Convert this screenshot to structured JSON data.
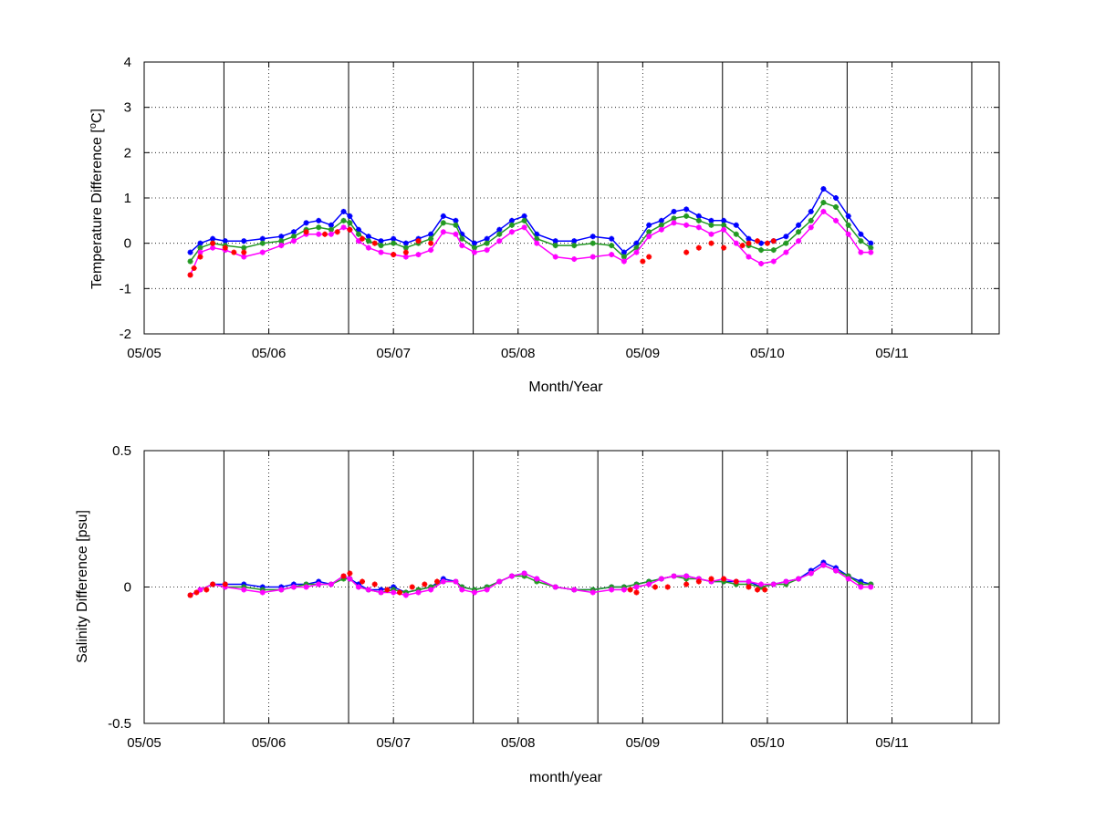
{
  "chart_data": [
    {
      "type": "line",
      "title": "",
      "xlabel": "Month/Year",
      "ylabel": "Temperature Difference [",
      "ylabel_sup": "o",
      "ylabel_tail": "C]",
      "xlim": [
        0,
        6.86
      ],
      "ylim": [
        -2,
        4
      ],
      "xticks": [
        0,
        1,
        2,
        3,
        4,
        5,
        6
      ],
      "xticklabels": [
        "05/05",
        "05/06",
        "05/07",
        "05/08",
        "05/09",
        "05/10",
        "05/11"
      ],
      "yticks": [
        -2,
        -1,
        0,
        1,
        2,
        3,
        4
      ],
      "yticklabels": [
        "-2",
        "-1",
        "0",
        "1",
        "2",
        "3",
        "4"
      ],
      "grid": true,
      "vertical_markers": [
        0.64,
        1.64,
        2.64,
        3.64,
        4.64,
        5.64,
        6.64
      ],
      "series": [
        {
          "color": "#0000ff",
          "marker": "asterisk",
          "x": [
            0.37,
            0.45,
            0.55,
            0.65,
            0.8,
            0.95,
            1.1,
            1.2,
            1.3,
            1.4,
            1.5,
            1.6,
            1.65,
            1.72,
            1.8,
            1.9,
            2.0,
            2.1,
            2.2,
            2.3,
            2.4,
            2.5,
            2.55,
            2.65,
            2.75,
            2.85,
            2.95,
            3.05,
            3.15,
            3.3,
            3.45,
            3.6,
            3.75,
            3.85,
            3.95,
            4.05,
            4.15,
            4.25,
            4.35,
            4.45,
            4.55,
            4.65,
            4.75,
            4.85,
            4.95,
            5.05,
            5.15,
            5.25,
            5.35,
            5.45,
            5.55,
            5.65,
            5.75,
            5.83
          ],
          "y": [
            -0.2,
            0.0,
            0.1,
            0.05,
            0.05,
            0.1,
            0.15,
            0.25,
            0.45,
            0.5,
            0.4,
            0.7,
            0.6,
            0.3,
            0.15,
            0.05,
            0.1,
            0.0,
            0.1,
            0.2,
            0.6,
            0.5,
            0.2,
            0.0,
            0.1,
            0.3,
            0.5,
            0.6,
            0.2,
            0.05,
            0.05,
            0.15,
            0.1,
            -0.2,
            0.0,
            0.4,
            0.5,
            0.7,
            0.75,
            0.6,
            0.5,
            0.5,
            0.4,
            0.1,
            0.0,
            0.05,
            0.15,
            0.4,
            0.7,
            1.2,
            1.0,
            0.6,
            0.2,
            0.0
          ]
        },
        {
          "color": "#229922",
          "marker": "asterisk",
          "x": [
            0.37,
            0.45,
            0.55,
            0.65,
            0.8,
            0.95,
            1.1,
            1.2,
            1.3,
            1.4,
            1.5,
            1.6,
            1.65,
            1.72,
            1.8,
            1.9,
            2.0,
            2.1,
            2.2,
            2.3,
            2.4,
            2.5,
            2.55,
            2.65,
            2.75,
            2.85,
            2.95,
            3.05,
            3.15,
            3.3,
            3.45,
            3.6,
            3.75,
            3.85,
            3.95,
            4.05,
            4.15,
            4.25,
            4.35,
            4.45,
            4.55,
            4.65,
            4.75,
            4.85,
            4.95,
            5.05,
            5.15,
            5.25,
            5.35,
            5.45,
            5.55,
            5.65,
            5.75,
            5.83
          ],
          "y": [
            -0.4,
            -0.1,
            0.0,
            -0.05,
            -0.1,
            0.0,
            0.05,
            0.15,
            0.3,
            0.35,
            0.3,
            0.5,
            0.45,
            0.2,
            0.05,
            -0.05,
            0.0,
            -0.1,
            0.0,
            0.1,
            0.45,
            0.4,
            0.1,
            -0.1,
            0.0,
            0.2,
            0.4,
            0.5,
            0.1,
            -0.05,
            -0.05,
            0.0,
            -0.05,
            -0.3,
            -0.1,
            0.25,
            0.4,
            0.55,
            0.6,
            0.5,
            0.4,
            0.4,
            0.2,
            -0.05,
            -0.15,
            -0.15,
            0.0,
            0.25,
            0.5,
            0.9,
            0.8,
            0.4,
            0.05,
            -0.1
          ]
        },
        {
          "color": "#ff00ff",
          "marker": "asterisk",
          "x": [
            0.37,
            0.45,
            0.55,
            0.65,
            0.8,
            0.95,
            1.1,
            1.2,
            1.3,
            1.4,
            1.5,
            1.6,
            1.65,
            1.72,
            1.8,
            1.9,
            2.0,
            2.1,
            2.2,
            2.3,
            2.4,
            2.5,
            2.55,
            2.65,
            2.75,
            2.85,
            2.95,
            3.05,
            3.15,
            3.3,
            3.45,
            3.6,
            3.75,
            3.85,
            3.95,
            4.05,
            4.15,
            4.25,
            4.35,
            4.45,
            4.55,
            4.65,
            4.75,
            4.85,
            4.95,
            5.05,
            5.15,
            5.25,
            5.35,
            5.45,
            5.55,
            5.65,
            5.75,
            5.83
          ],
          "y": [
            -0.7,
            -0.2,
            -0.1,
            -0.15,
            -0.3,
            -0.2,
            -0.05,
            0.05,
            0.2,
            0.2,
            0.2,
            0.35,
            0.3,
            0.05,
            -0.1,
            -0.2,
            -0.25,
            -0.3,
            -0.25,
            -0.15,
            0.25,
            0.2,
            -0.05,
            -0.2,
            -0.15,
            0.05,
            0.25,
            0.35,
            0.0,
            -0.3,
            -0.35,
            -0.3,
            -0.25,
            -0.4,
            -0.2,
            0.15,
            0.3,
            0.45,
            0.4,
            0.35,
            0.2,
            0.3,
            0.0,
            -0.3,
            -0.45,
            -0.4,
            -0.2,
            0.05,
            0.35,
            0.7,
            0.5,
            0.2,
            -0.2,
            -0.2
          ]
        },
        {
          "color": "#ff0000",
          "marker": "asterisk",
          "x": [
            0.37,
            0.4,
            0.45,
            0.55,
            0.65,
            0.72,
            0.8,
            1.3,
            1.45,
            1.55,
            1.65,
            1.75,
            1.85,
            2.0,
            2.1,
            2.2,
            2.3,
            4.0,
            4.05,
            4.35,
            4.45,
            4.55,
            4.65,
            4.8,
            4.85,
            4.92,
            5.0,
            5.05
          ],
          "y": [
            -0.7,
            -0.55,
            -0.3,
            0.0,
            -0.1,
            -0.2,
            -0.2,
            0.25,
            0.2,
            0.25,
            0.3,
            0.1,
            0.0,
            -0.25,
            -0.2,
            0.05,
            0.0,
            -0.4,
            -0.3,
            -0.2,
            -0.1,
            0.0,
            -0.1,
            -0.05,
            0.0,
            0.05,
            0.0,
            0.05
          ]
        }
      ]
    },
    {
      "type": "line",
      "title": "",
      "xlabel": "month/year",
      "ylabel": "Salinity Difference [psu]",
      "xlim": [
        0,
        6.86
      ],
      "ylim": [
        -0.5,
        0.5
      ],
      "xticks": [
        0,
        1,
        2,
        3,
        4,
        5,
        6
      ],
      "xticklabels": [
        "05/05",
        "05/06",
        "05/07",
        "05/08",
        "05/09",
        "05/10",
        "05/11"
      ],
      "yticks": [
        -0.5,
        0,
        0.5
      ],
      "yticklabels": [
        "-0.5",
        "0",
        "0.5"
      ],
      "grid": true,
      "vertical_markers": [
        0.64,
        1.64,
        2.64,
        3.64,
        4.64,
        5.64,
        6.64
      ],
      "series": [
        {
          "color": "#0000ff",
          "marker": "asterisk",
          "x": [
            0.37,
            0.45,
            0.55,
            0.65,
            0.8,
            0.95,
            1.1,
            1.2,
            1.3,
            1.4,
            1.5,
            1.6,
            1.65,
            1.72,
            1.8,
            1.9,
            2.0,
            2.1,
            2.2,
            2.3,
            2.4,
            2.5,
            2.55,
            2.65,
            2.75,
            2.85,
            2.95,
            3.05,
            3.15,
            3.3,
            3.45,
            3.6,
            3.75,
            3.85,
            3.95,
            4.05,
            4.15,
            4.25,
            4.35,
            4.45,
            4.55,
            4.65,
            4.75,
            4.85,
            4.95,
            5.05,
            5.15,
            5.25,
            5.35,
            5.45,
            5.55,
            5.65,
            5.75,
            5.83
          ],
          "y": [
            -0.03,
            -0.01,
            0.01,
            0.01,
            0.01,
            0.0,
            0.0,
            0.01,
            0.01,
            0.02,
            0.01,
            0.04,
            0.03,
            0.01,
            -0.01,
            -0.01,
            0.0,
            -0.02,
            -0.01,
            0.0,
            0.03,
            0.02,
            0.0,
            -0.01,
            0.0,
            0.02,
            0.04,
            0.05,
            0.03,
            0.0,
            -0.01,
            -0.01,
            0.0,
            0.0,
            0.01,
            0.02,
            0.03,
            0.04,
            0.04,
            0.03,
            0.02,
            0.02,
            0.02,
            0.02,
            0.0,
            0.01,
            0.02,
            0.03,
            0.06,
            0.09,
            0.07,
            0.04,
            0.02,
            0.01
          ]
        },
        {
          "color": "#229922",
          "marker": "asterisk",
          "x": [
            0.37,
            0.45,
            0.55,
            0.65,
            0.8,
            0.95,
            1.1,
            1.2,
            1.3,
            1.4,
            1.5,
            1.6,
            1.65,
            1.72,
            1.8,
            1.9,
            2.0,
            2.1,
            2.2,
            2.3,
            2.4,
            2.5,
            2.55,
            2.65,
            2.75,
            2.85,
            2.95,
            3.05,
            3.15,
            3.3,
            3.45,
            3.6,
            3.75,
            3.85,
            3.95,
            4.05,
            4.15,
            4.25,
            4.35,
            4.45,
            4.55,
            4.65,
            4.75,
            4.85,
            4.95,
            5.05,
            5.15,
            5.25,
            5.35,
            5.45,
            5.55,
            5.65,
            5.75,
            5.83
          ],
          "y": [
            -0.03,
            -0.01,
            0.01,
            0.0,
            0.0,
            -0.01,
            -0.01,
            0.0,
            0.01,
            0.01,
            0.01,
            0.03,
            0.03,
            0.0,
            -0.01,
            -0.02,
            -0.01,
            -0.02,
            -0.01,
            0.0,
            0.02,
            0.02,
            0.0,
            -0.01,
            0.0,
            0.02,
            0.04,
            0.04,
            0.02,
            0.0,
            -0.01,
            -0.01,
            0.0,
            0.0,
            0.01,
            0.02,
            0.03,
            0.04,
            0.03,
            0.03,
            0.02,
            0.02,
            0.01,
            0.01,
            0.0,
            0.01,
            0.01,
            0.03,
            0.05,
            0.08,
            0.06,
            0.04,
            0.01,
            0.01
          ]
        },
        {
          "color": "#ff00ff",
          "marker": "asterisk",
          "x": [
            0.37,
            0.45,
            0.55,
            0.65,
            0.8,
            0.95,
            1.1,
            1.2,
            1.3,
            1.4,
            1.5,
            1.6,
            1.65,
            1.72,
            1.8,
            1.9,
            2.0,
            2.1,
            2.2,
            2.3,
            2.4,
            2.5,
            2.55,
            2.65,
            2.75,
            2.85,
            2.95,
            3.05,
            3.15,
            3.3,
            3.45,
            3.6,
            3.75,
            3.85,
            3.95,
            4.05,
            4.15,
            4.25,
            4.35,
            4.45,
            4.55,
            4.65,
            4.75,
            4.85,
            4.95,
            5.05,
            5.15,
            5.25,
            5.35,
            5.45,
            5.55,
            5.65,
            5.75,
            5.83
          ],
          "y": [
            -0.03,
            -0.01,
            0.01,
            0.0,
            -0.01,
            -0.02,
            -0.01,
            0.0,
            0.0,
            0.01,
            0.01,
            0.04,
            0.03,
            0.0,
            -0.01,
            -0.02,
            -0.02,
            -0.03,
            -0.02,
            -0.01,
            0.02,
            0.02,
            -0.01,
            -0.02,
            -0.01,
            0.02,
            0.04,
            0.05,
            0.03,
            0.0,
            -0.01,
            -0.02,
            -0.01,
            -0.01,
            0.0,
            0.01,
            0.03,
            0.04,
            0.04,
            0.03,
            0.02,
            0.03,
            0.02,
            0.02,
            0.01,
            0.01,
            0.02,
            0.03,
            0.05,
            0.08,
            0.06,
            0.03,
            0.0,
            0.0
          ]
        },
        {
          "color": "#ff0000",
          "marker": "asterisk",
          "x": [
            0.37,
            0.42,
            0.5,
            0.55,
            0.65,
            1.6,
            1.65,
            1.75,
            1.85,
            1.95,
            2.05,
            2.15,
            2.25,
            2.35,
            3.9,
            3.95,
            4.1,
            4.2,
            4.35,
            4.45,
            4.55,
            4.65,
            4.75,
            4.85,
            4.92,
            4.98
          ],
          "y": [
            -0.03,
            -0.02,
            -0.01,
            0.01,
            0.01,
            0.04,
            0.05,
            0.02,
            0.01,
            -0.01,
            -0.02,
            0.0,
            0.01,
            0.02,
            -0.01,
            -0.02,
            0.0,
            0.0,
            0.01,
            0.02,
            0.03,
            0.03,
            0.02,
            0.0,
            -0.01,
            -0.01
          ]
        }
      ]
    }
  ]
}
